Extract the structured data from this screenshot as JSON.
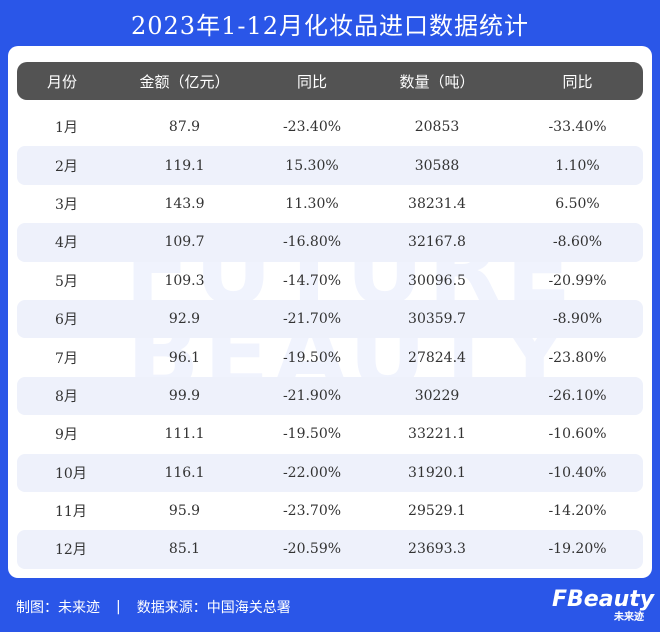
{
  "title": "2023年1-12月化妆品进口数据统计",
  "watermark": {
    "line1": "FUTURE",
    "line2": "BEAUTY"
  },
  "table": {
    "headers": [
      "月份",
      "金额（亿元）",
      "同比",
      "数量（吨）",
      "同比"
    ],
    "rows": [
      [
        "1月",
        "87.9",
        "-23.40%",
        "20853",
        "-33.40%"
      ],
      [
        "2月",
        "119.1",
        "15.30%",
        "30588",
        "1.10%"
      ],
      [
        "3月",
        "143.9",
        "11.30%",
        "38231.4",
        "6.50%"
      ],
      [
        "4月",
        "109.7",
        "-16.80%",
        "32167.8",
        "-8.60%"
      ],
      [
        "5月",
        "109.3",
        "-14.70%",
        "30096.5",
        "-20.99%"
      ],
      [
        "6月",
        "92.9",
        "-21.70%",
        "30359.7",
        "-8.90%"
      ],
      [
        "7月",
        "96.1",
        "-19.50%",
        "27824.4",
        "-23.80%"
      ],
      [
        "8月",
        "99.9",
        "-21.90%",
        "30229",
        "-26.10%"
      ],
      [
        "9月",
        "111.1",
        "-19.50%",
        "33221.1",
        "-10.60%"
      ],
      [
        "10月",
        "116.1",
        "-22.00%",
        "31920.1",
        "-10.40%"
      ],
      [
        "11月",
        "95.9",
        "-23.70%",
        "29529.1",
        "-14.20%"
      ],
      [
        "12月",
        "85.1",
        "-20.59%",
        "23693.3",
        "-19.20%"
      ]
    ]
  },
  "footer": {
    "credit": "制图：未来迹",
    "separator": "|",
    "source": "数据来源：中国海关总署"
  },
  "logo": {
    "main": "FBeauty",
    "sub": "未来迹"
  },
  "colors": {
    "background": "#2a56e8",
    "header_row": "#535353",
    "alt_row": "#eef1fb"
  }
}
